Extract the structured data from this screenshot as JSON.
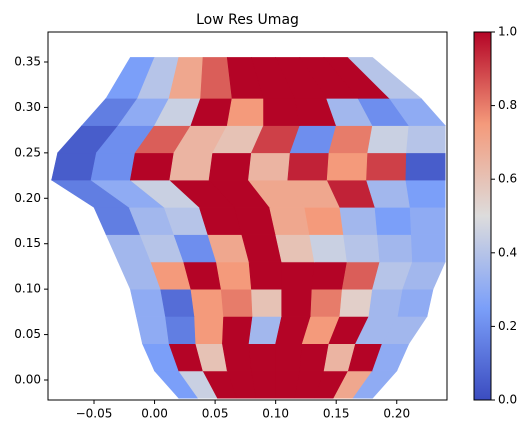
{
  "chart_data": {
    "type": "heatmap",
    "title": "Low Res Umag",
    "xlim": [
      -0.088,
      0.2415
    ],
    "ylim": [
      -0.022,
      0.383
    ],
    "xticks": [
      {
        "value": -0.05,
        "label": "−0.05"
      },
      {
        "value": 0,
        "label": "0.00"
      },
      {
        "value": 0.05,
        "label": "0.05"
      },
      {
        "value": 0.1,
        "label": "0.10"
      },
      {
        "value": 0.15,
        "label": "0.15"
      },
      {
        "value": 0.2,
        "label": "0.20"
      }
    ],
    "yticks": [
      {
        "value": 0,
        "label": "0.00"
      },
      {
        "value": 0.05,
        "label": "0.05"
      },
      {
        "value": 0.1,
        "label": "0.10"
      },
      {
        "value": 0.15,
        "label": "0.15"
      },
      {
        "value": 0.2,
        "label": "0.20"
      },
      {
        "value": 0.25,
        "label": "0.25"
      },
      {
        "value": 0.3,
        "label": "0.30"
      },
      {
        "value": 0.35,
        "label": "0.35"
      }
    ],
    "clim": [
      0,
      1
    ],
    "cticks": [
      {
        "value": 0,
        "label": "0.0"
      },
      {
        "value": 0.2,
        "label": "0.2"
      },
      {
        "value": 0.4,
        "label": "0.4"
      },
      {
        "value": 0.6,
        "label": "0.6"
      },
      {
        "value": 0.8,
        "label": "0.8"
      },
      {
        "value": 1,
        "label": "1.0"
      }
    ],
    "colormap": [
      "#3b4cc0",
      "#7b9ff9",
      "#dddcdc",
      "#f49a7b",
      "#b40426"
    ],
    "y": [
      -0.02,
      0.01,
      0.04,
      0.07,
      0.1,
      0.13,
      0.16,
      0.19,
      0.22,
      0.25,
      0.28,
      0.31,
      0.355
    ],
    "x": [
      [
        0.02,
        0.036,
        0.052,
        0.068,
        0.084,
        0.1,
        0.116,
        0.132,
        0.148,
        0.164,
        0.18
      ],
      [
        0,
        0.02,
        0.04,
        0.06,
        0.08,
        0.1,
        0.12,
        0.14,
        0.16,
        0.18,
        0.2
      ],
      [
        -0.01,
        0.012,
        0.034,
        0.056,
        0.078,
        0.1,
        0.122,
        0.144,
        0.166,
        0.188,
        0.21
      ],
      [
        -0.015,
        0.009,
        0.033,
        0.057,
        0.081,
        0.105,
        0.129,
        0.153,
        0.177,
        0.201,
        0.225
      ],
      [
        -0.02,
        0.005,
        0.03,
        0.055,
        0.08,
        0.105,
        0.13,
        0.155,
        0.18,
        0.205,
        0.23
      ],
      [
        -0.03,
        -0.003,
        0.024,
        0.051,
        0.078,
        0.105,
        0.132,
        0.159,
        0.186,
        0.213,
        0.24
      ],
      [
        -0.04,
        -0.012,
        0.016,
        0.044,
        0.072,
        0.1,
        0.128,
        0.156,
        0.184,
        0.212,
        0.24
      ],
      [
        -0.05,
        -0.021,
        0.008,
        0.037,
        0.066,
        0.095,
        0.124,
        0.153,
        0.182,
        0.211,
        0.24
      ],
      [
        -0.085,
        -0.0525,
        -0.02,
        0.0125,
        0.045,
        0.0775,
        0.11,
        0.1425,
        0.175,
        0.2075,
        0.24
      ],
      [
        -0.08,
        -0.048,
        -0.016,
        0.016,
        0.048,
        0.08,
        0.112,
        0.144,
        0.176,
        0.208,
        0.24
      ],
      [
        -0.06,
        -0.03,
        0,
        0.03,
        0.06,
        0.09,
        0.12,
        0.15,
        0.18,
        0.21,
        0.24
      ],
      [
        -0.04,
        -0.014,
        0.012,
        0.038,
        0.064,
        0.09,
        0.116,
        0.142,
        0.168,
        0.194,
        0.22
      ],
      [
        -0.02,
        0,
        0.02,
        0.04,
        0.06,
        0.08,
        0.1,
        0.12,
        0.14,
        0.16,
        0.18
      ]
    ],
    "values": [
      [
        0.25,
        0.45,
        1,
        1,
        1,
        1,
        1,
        1,
        0.7,
        0.3
      ],
      [
        0.25,
        1,
        0.6,
        1,
        1,
        1,
        1,
        0.65,
        1,
        0.3
      ],
      [
        0.3,
        0.15,
        0.75,
        1,
        0.35,
        1,
        0.75,
        1,
        0.35,
        0.35
      ],
      [
        0.3,
        0.1,
        0.75,
        0.8,
        0.6,
        1,
        0.8,
        0.55,
        0.35,
        0.3
      ],
      [
        0.35,
        0.75,
        1,
        0.75,
        1,
        1,
        1,
        0.85,
        0.4,
        0.35
      ],
      [
        0.35,
        0.4,
        0.2,
        0.7,
        1,
        0.6,
        0.45,
        0.4,
        0.35,
        0.3
      ],
      [
        0.15,
        0.35,
        0.4,
        1,
        1,
        0.7,
        0.75,
        0.35,
        0.25,
        0.3
      ],
      [
        0.15,
        0.3,
        0.45,
        1,
        1,
        0.7,
        0.7,
        0.95,
        0.35,
        0.25
      ],
      [
        0.05,
        0.2,
        1,
        0.65,
        1,
        0.65,
        0.95,
        0.75,
        0.9,
        0.05
      ],
      [
        0.05,
        0.2,
        0.85,
        0.65,
        0.6,
        0.9,
        0.2,
        0.8,
        0.45,
        0.4
      ],
      [
        0.15,
        0.3,
        0.45,
        1,
        0.75,
        1,
        1,
        0.35,
        0.2,
        0.3
      ],
      [
        0.25,
        0.4,
        0.7,
        0.85,
        1,
        1,
        1,
        1,
        1,
        0.4
      ]
    ]
  }
}
